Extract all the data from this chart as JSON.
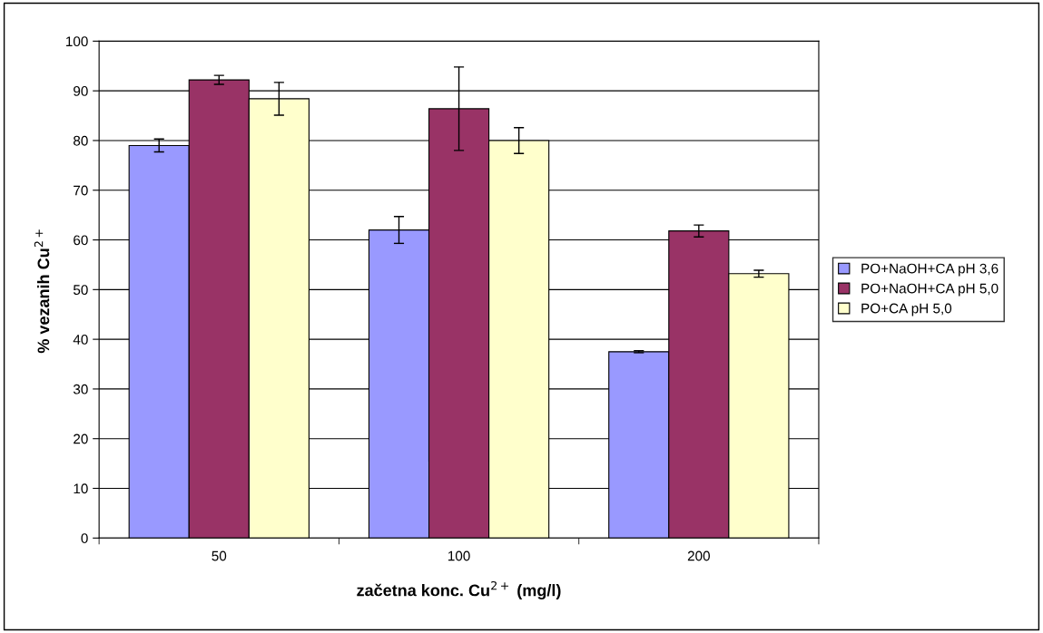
{
  "chart_data": {
    "type": "bar",
    "xlabel": "začetna konc. Cu$^{2+}$ (mg/l)",
    "ylabel": "% vezanih Cu$^{2+}$",
    "categories": [
      "50",
      "100",
      "200"
    ],
    "series": [
      {
        "name": "PO+NaOH+CA pH 3,6",
        "color": "#9999ff",
        "values": [
          79,
          62,
          37.5
        ],
        "errors": [
          1.3,
          2.7,
          0.2
        ]
      },
      {
        "name": "PO+NaOH+CA pH 5,0",
        "color": "#993366",
        "values": [
          92.2,
          86.4,
          61.8
        ],
        "errors": [
          0.9,
          8.4,
          1.2
        ]
      },
      {
        "name": "PO+CA pH 5,0",
        "color": "#ffffcc",
        "values": [
          88.4,
          80,
          53.2
        ],
        "errors": [
          3.3,
          2.6,
          0.7
        ]
      }
    ],
    "ylim": [
      0,
      100
    ],
    "yticks": [
      0,
      10,
      20,
      30,
      40,
      50,
      60,
      70,
      80,
      90,
      100
    ],
    "grid": "y",
    "legend": "right"
  }
}
